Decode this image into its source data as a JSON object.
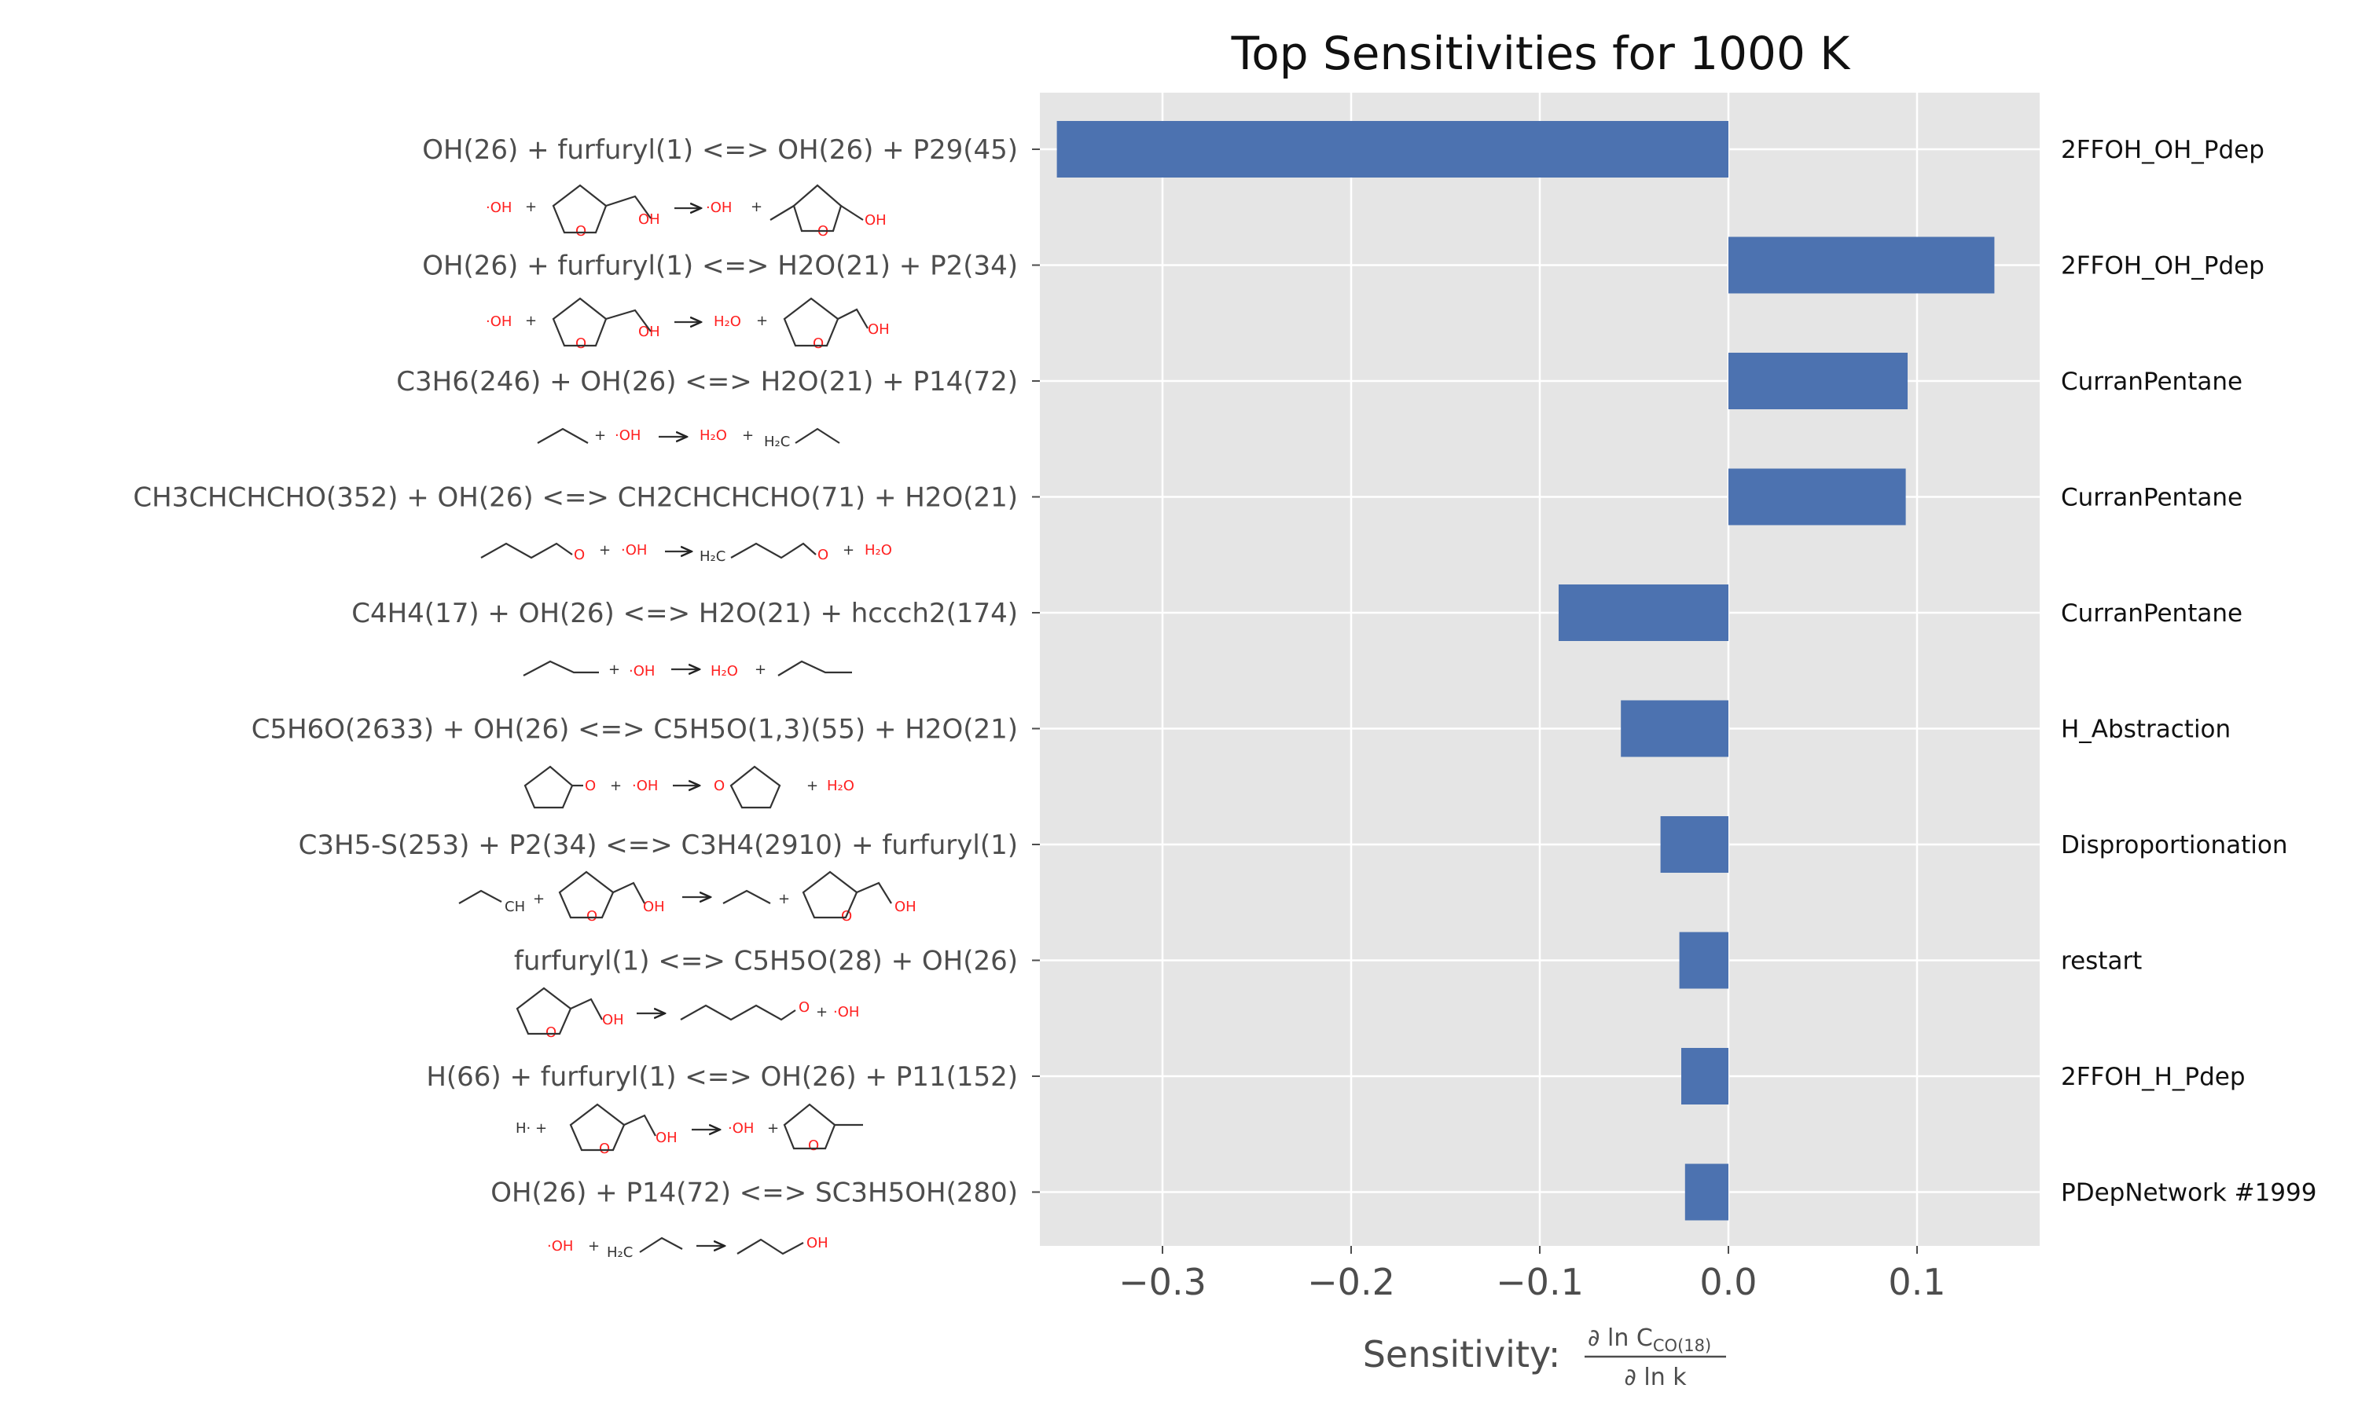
{
  "chart_data": {
    "type": "bar",
    "orientation": "horizontal",
    "title": "Top Sensitivities for 1000 K",
    "xlabel": {
      "prefix": "Sensitivity: ",
      "numerator": "∂ ln C",
      "numerator_subscript": "CO(18)",
      "denominator": "∂ ln k"
    },
    "xlim": [
      -0.365,
      0.165
    ],
    "xticks": [
      -0.3,
      -0.2,
      -0.1,
      0.0,
      0.1
    ],
    "xtick_labels": [
      "−0.3",
      "−0.2",
      "−0.1",
      "0.0",
      "0.1"
    ],
    "grid": true,
    "bar_color": "#4c72b0",
    "background_color": "#e5e5e5",
    "categories": [
      "OH(26) + furfuryl(1) <=> OH(26) + P29(45)",
      "OH(26) + furfuryl(1) <=> H2O(21) + P2(34)",
      "C3H6(246) + OH(26) <=> H2O(21) + P14(72)",
      "CH3CHCHCHO(352) + OH(26) <=> CH2CHCHCHO(71) + H2O(21)",
      "C4H4(17) + OH(26) <=> H2O(21) + hccch2(174)",
      "C5H6O(2633) + OH(26) <=> C5H5O(1,3)(55) + H2O(21)",
      "C3H5-S(253) + P2(34) <=> C3H4(2910) + furfuryl(1)",
      "furfuryl(1) <=> C5H5O(28) + OH(26)",
      "H(66) + furfuryl(1) <=> OH(26) + P11(152)",
      "OH(26) + P14(72) <=> SC3H5OH(280)"
    ],
    "right_labels": [
      "2FFOH_OH_Pdep",
      "2FFOH_OH_Pdep",
      "CurranPentane",
      "CurranPentane",
      "CurranPentane",
      "H_Abstraction",
      "Disproportionation",
      "restart",
      "2FFOH_H_Pdep",
      "PDepNetwork #1999"
    ],
    "values": [
      -0.356,
      0.141,
      0.095,
      0.094,
      -0.09,
      -0.057,
      -0.036,
      -0.026,
      -0.025,
      -0.023
    ]
  }
}
